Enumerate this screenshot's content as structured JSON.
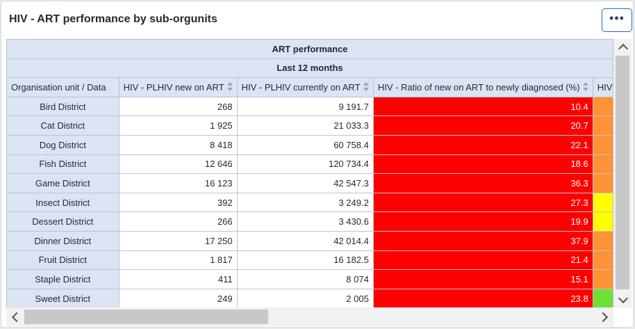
{
  "title": "HIV - ART performance by sub-orgunits",
  "menu_icon": "ellipsis-icon",
  "table": {
    "group_header": "ART performance",
    "period_header": "Last 12 months",
    "columns": [
      "Organisation unit / Data",
      "HIV - PLHIV new on ART",
      "HIV - PLHIV currently on ART",
      "HIV - Ratio of new on ART to newly diagnosed (%)",
      "HIV"
    ],
    "rows": [
      {
        "org": "Bird District",
        "new": "268",
        "current": "9 191.7",
        "ratio": "10.4",
        "next_color": "#ff9234"
      },
      {
        "org": "Cat District",
        "new": "1 925",
        "current": "21 033.3",
        "ratio": "20.7",
        "next_color": "#ff9234"
      },
      {
        "org": "Dog District",
        "new": "8 418",
        "current": "60 758.4",
        "ratio": "22.1",
        "next_color": "#ff9234"
      },
      {
        "org": "Fish District",
        "new": "12 646",
        "current": "120 734.4",
        "ratio": "18.6",
        "next_color": "#ff9234"
      },
      {
        "org": "Game District",
        "new": "16 123",
        "current": "42 547.3",
        "ratio": "36.3",
        "next_color": "#ff9234"
      },
      {
        "org": "Insect District",
        "new": "392",
        "current": "3 249.2",
        "ratio": "27.3",
        "next_color": "#ffff00"
      },
      {
        "org": "Dessert District",
        "new": "266",
        "current": "3 430.6",
        "ratio": "19.9",
        "next_color": "#ffff00"
      },
      {
        "org": "Dinner District",
        "new": "17 250",
        "current": "42 014.4",
        "ratio": "37.9",
        "next_color": "#ff9234"
      },
      {
        "org": "Fruit District",
        "new": "1 817",
        "current": "16 182.5",
        "ratio": "21.4",
        "next_color": "#ff9234"
      },
      {
        "org": "Staple District",
        "new": "411",
        "current": "8 074",
        "ratio": "15.1",
        "next_color": "#ff9234"
      },
      {
        "org": "Sweet District",
        "new": "249",
        "current": "2 005",
        "ratio": "23.8",
        "next_color": "#6ee036"
      }
    ]
  },
  "colors": {
    "ratio_fill": "#ff0000",
    "header_bg": "#dae4f2",
    "accent": "#1f6cc2"
  }
}
